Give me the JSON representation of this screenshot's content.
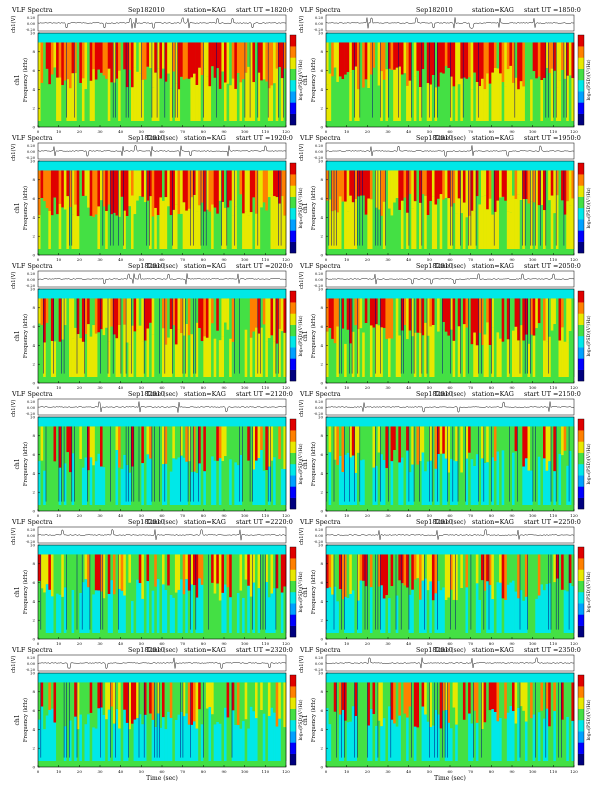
{
  "page": {
    "header_common": {
      "title": "VLF Spectra",
      "date": "Sep182010",
      "station": "station=KAG"
    }
  },
  "legend": {
    "colorbar_label": "log₁₀(PSD)(V²/Hz)",
    "colors": [
      "#00007f",
      "#0000ff",
      "#00a0ff",
      "#00e8e8",
      "#44e044",
      "#e8e800",
      "#ff8000",
      "#e00000"
    ]
  },
  "chart_data": [
    {
      "type": "heatmap",
      "title": "VLF Spectra",
      "start_ut": "start  UT =1820:0",
      "xlabel": "Time (sec)",
      "ylabel": "Frequency (kHz)",
      "channel_label": "ch1",
      "wave_label": "ch1(V)",
      "xlim": [
        0,
        120
      ],
      "ylim": [
        0,
        10
      ],
      "x_ticks": [
        0,
        10,
        20,
        30,
        40,
        50,
        60,
        70,
        80,
        90,
        100,
        110,
        120
      ],
      "y_ticks": [
        0,
        2,
        4,
        6,
        8,
        10
      ],
      "wave_ticks": [
        "0.20",
        "0.00",
        "-0.20"
      ],
      "activity": "high",
      "colorbar_ticks": [],
      "wave_spikes": [
        14,
        32,
        45,
        47,
        56,
        70,
        73,
        87,
        94,
        104
      ]
    },
    {
      "type": "heatmap",
      "title": "VLF Spectra",
      "start_ut": "start  UT =1850:0",
      "xlabel": "Time (sec)",
      "ylabel": "Frequency (kHz)",
      "channel_label": "ch1",
      "wave_label": "ch1(V)",
      "xlim": [
        0,
        120
      ],
      "ylim": [
        0,
        10
      ],
      "x_ticks": [
        0,
        10,
        20,
        30,
        40,
        50,
        60,
        70,
        80,
        90,
        100,
        110,
        120
      ],
      "y_ticks": [
        0,
        2,
        4,
        6,
        8,
        10
      ],
      "wave_ticks": [
        "0.20",
        "0.00",
        "-0.20"
      ],
      "activity": "high",
      "colorbar_ticks": [],
      "wave_spikes": [
        20,
        22,
        44,
        52,
        62,
        70,
        71,
        84,
        101
      ]
    },
    {
      "type": "heatmap",
      "title": "VLF Spectra",
      "start_ut": "start  UT =1920:0",
      "xlabel": "Time (sec)",
      "ylabel": "Frequency (kHz)",
      "channel_label": "ch1",
      "wave_label": "ch1(V)",
      "xlim": [
        0,
        120
      ],
      "ylim": [
        0,
        10
      ],
      "x_ticks": [
        0,
        10,
        20,
        30,
        40,
        50,
        60,
        70,
        80,
        90,
        100,
        110,
        120
      ],
      "y_ticks": [
        0,
        2,
        4,
        6,
        8,
        10
      ],
      "wave_ticks": [
        "0.20",
        "0.00",
        "-0.20"
      ],
      "activity": "high",
      "colorbar_ticks": [],
      "wave_spikes": [
        8,
        24,
        41,
        47,
        55,
        69,
        74,
        92,
        110
      ]
    },
    {
      "type": "heatmap",
      "title": "VLF Spectra",
      "start_ut": "start  UT =1950:0",
      "xlabel": "Time (sec)",
      "ylabel": "Frequency (kHz)",
      "channel_label": "ch1",
      "wave_label": "ch1(V)",
      "xlim": [
        0,
        120
      ],
      "ylim": [
        0,
        10
      ],
      "x_ticks": [
        0,
        10,
        20,
        30,
        40,
        50,
        60,
        70,
        80,
        90,
        100,
        110,
        120
      ],
      "y_ticks": [
        0,
        2,
        4,
        6,
        8,
        10
      ],
      "wave_ticks": [
        "0.20",
        "0.00",
        "-0.20"
      ],
      "activity": "high",
      "colorbar_ticks": [],
      "wave_spikes": [
        22,
        35,
        58,
        71,
        88,
        104
      ]
    },
    {
      "type": "heatmap",
      "title": "VLF Spectra",
      "start_ut": "start  UT =2020:0",
      "xlabel": "Time (sec)",
      "ylabel": "Frequency (kHz)",
      "channel_label": "ch1",
      "wave_label": "ch1(V)",
      "xlim": [
        0,
        120
      ],
      "ylim": [
        0,
        10
      ],
      "x_ticks": [
        0,
        10,
        20,
        30,
        40,
        50,
        60,
        70,
        80,
        90,
        100,
        110,
        120
      ],
      "y_ticks": [
        0,
        2,
        4,
        6,
        8,
        10
      ],
      "wave_ticks": [
        "0.20",
        "0.00",
        "-0.20"
      ],
      "activity": "medium",
      "colorbar_ticks": [],
      "wave_spikes": [
        32,
        44,
        46,
        49,
        63,
        72,
        97
      ]
    },
    {
      "type": "heatmap",
      "title": "VLF Spectra",
      "start_ut": "start  UT =2050:0",
      "xlabel": "Time (sec)",
      "ylabel": "Frequency (kHz)",
      "channel_label": "ch1",
      "wave_label": "ch1(V)",
      "xlim": [
        0,
        120
      ],
      "ylim": [
        0,
        10
      ],
      "x_ticks": [
        0,
        10,
        20,
        30,
        40,
        50,
        60,
        70,
        80,
        90,
        100,
        110,
        120
      ],
      "y_ticks": [
        0,
        2,
        4,
        6,
        8,
        10
      ],
      "wave_ticks": [
        "0.20",
        "0.00",
        "-0.20"
      ],
      "activity": "medium",
      "colorbar_ticks": [],
      "wave_spikes": [
        24,
        42,
        51,
        62,
        74,
        95,
        110
      ]
    },
    {
      "type": "heatmap",
      "title": "VLF Spectra",
      "start_ut": "start  UT =2120:0",
      "xlabel": "Time (sec)",
      "ylabel": "Frequency (kHz)",
      "channel_label": "ch1",
      "wave_label": "ch1(V)",
      "xlim": [
        0,
        120
      ],
      "ylim": [
        0,
        10
      ],
      "x_ticks": [
        0,
        10,
        20,
        30,
        40,
        50,
        60,
        70,
        80,
        90,
        100,
        110,
        120
      ],
      "y_ticks": [
        0,
        2,
        4,
        6,
        8,
        10
      ],
      "wave_ticks": [
        "0.20",
        "0.00",
        "-0.20"
      ],
      "activity": "low",
      "colorbar_ticks": [],
      "wave_spikes": [
        30,
        49,
        68,
        91
      ]
    },
    {
      "type": "heatmap",
      "title": "VLF Spectra",
      "start_ut": "start  UT =2150:0",
      "xlabel": "Time (sec)",
      "ylabel": "Frequency (kHz)",
      "channel_label": "ch1",
      "wave_label": "ch1(V)",
      "xlim": [
        0,
        120
      ],
      "ylim": [
        0,
        10
      ],
      "x_ticks": [
        0,
        10,
        20,
        30,
        40,
        50,
        60,
        70,
        80,
        90,
        100,
        110,
        120
      ],
      "y_ticks": [
        0,
        2,
        4,
        6,
        8,
        10
      ],
      "wave_ticks": [
        "0.20",
        "0.00",
        "-0.20"
      ],
      "activity": "low",
      "colorbar_ticks": [],
      "wave_spikes": [
        18,
        47,
        64,
        86,
        108
      ]
    },
    {
      "type": "heatmap",
      "title": "VLF Spectra",
      "start_ut": "start  UT =2220:0",
      "xlabel": "Time (sec)",
      "ylabel": "Frequency (kHz)",
      "channel_label": "ch1",
      "wave_label": "ch1(V)",
      "xlim": [
        0,
        120
      ],
      "ylim": [
        0,
        10
      ],
      "x_ticks": [
        0,
        10,
        20,
        30,
        40,
        50,
        60,
        70,
        80,
        90,
        100,
        110,
        120
      ],
      "y_ticks": [
        0,
        2,
        4,
        6,
        8,
        10
      ],
      "wave_ticks": [
        "0.20",
        "0.00",
        "-0.20"
      ],
      "activity": "low",
      "colorbar_ticks": [],
      "wave_spikes": [
        12,
        36,
        57,
        79,
        98
      ]
    },
    {
      "type": "heatmap",
      "title": "VLF Spectra",
      "start_ut": "start  UT =2250:0",
      "xlabel": "Time (sec)",
      "ylabel": "Frequency (kHz)",
      "channel_label": "ch1",
      "wave_label": "ch1(V)",
      "xlim": [
        0,
        120
      ],
      "ylim": [
        0,
        10
      ],
      "x_ticks": [
        0,
        10,
        20,
        30,
        40,
        50,
        60,
        70,
        80,
        90,
        100,
        110,
        120
      ],
      "y_ticks": [
        0,
        2,
        4,
        6,
        8,
        10
      ],
      "wave_ticks": [
        "0.20",
        "0.00",
        "-0.20"
      ],
      "activity": "low",
      "colorbar_ticks": [],
      "wave_spikes": [
        26,
        54,
        77,
        93
      ]
    },
    {
      "type": "heatmap",
      "title": "VLF Spectra",
      "start_ut": "start  UT =2320:0",
      "xlabel": "Time (sec)",
      "ylabel": "Frequency (kHz)",
      "channel_label": "ch1",
      "wave_label": "ch1(V)",
      "xlim": [
        0,
        120
      ],
      "ylim": [
        0,
        10
      ],
      "x_ticks": [
        0,
        10,
        20,
        30,
        40,
        50,
        60,
        70,
        80,
        90,
        100,
        110,
        120
      ],
      "y_ticks": [
        0,
        2,
        4,
        6,
        8,
        10
      ],
      "wave_ticks": [
        "0.20",
        "0.00",
        "-0.20"
      ],
      "activity": "low",
      "colorbar_ticks": [],
      "wave_spikes": [
        15,
        33,
        66,
        89,
        112
      ]
    },
    {
      "type": "heatmap",
      "title": "VLF Spectra",
      "start_ut": "start  UT =2350:0",
      "xlabel": "Time (sec)",
      "ylabel": "Frequency (kHz)",
      "channel_label": "ch1",
      "wave_label": "ch1(V)",
      "xlim": [
        0,
        120
      ],
      "ylim": [
        0,
        10
      ],
      "x_ticks": [
        0,
        10,
        20,
        30,
        40,
        50,
        60,
        70,
        80,
        90,
        100,
        110,
        120
      ],
      "y_ticks": [
        0,
        2,
        4,
        6,
        8,
        10
      ],
      "wave_ticks": [
        "0.20",
        "0.00",
        "-0.20"
      ],
      "activity": "low",
      "colorbar_ticks": [],
      "wave_spikes": [
        21,
        46,
        71,
        102
      ]
    }
  ]
}
